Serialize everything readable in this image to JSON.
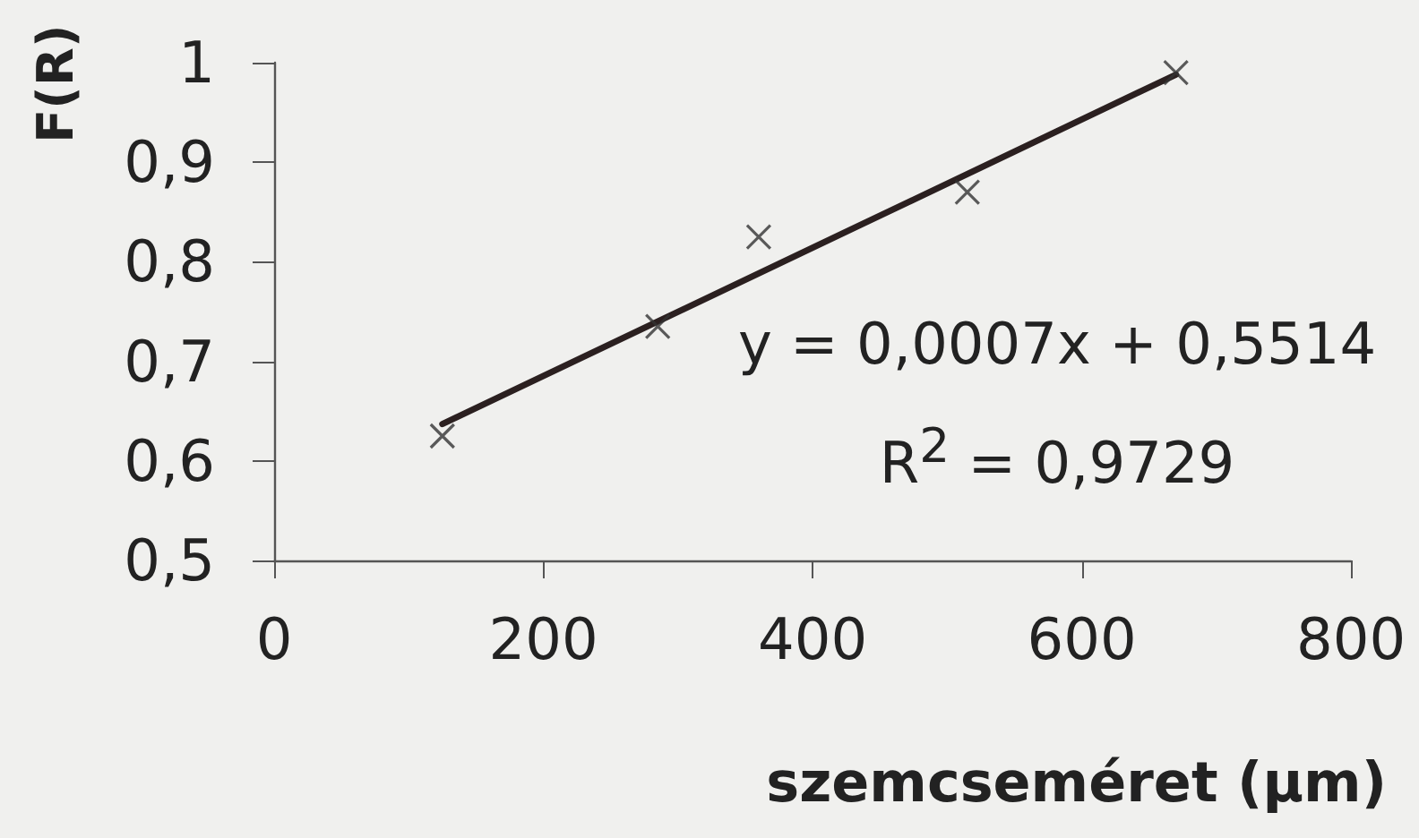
{
  "chart_data": {
    "type": "scatter",
    "xlabel": "szemcseméret (µm)",
    "ylabel": "F(R)",
    "series": [
      {
        "type": "line",
        "color": "#2b2020",
        "x": [
          125,
          670
        ],
        "values": [
          0.637,
          0.988
        ],
        "marker": "none"
      },
      {
        "color": "#333333",
        "x": [
          125,
          285,
          360,
          515,
          670
        ],
        "values": [
          0.625,
          0.735,
          0.825,
          0.87,
          0.99
        ],
        "marker": "cross"
      }
    ],
    "xlim": [
      0,
      800
    ],
    "xticks": [
      0,
      200,
      400,
      600,
      800
    ],
    "ylim": [
      0.5,
      1
    ],
    "yticks": [
      {
        "value": 0.5,
        "label": "0,5"
      },
      {
        "value": 0.6,
        "label": "0,6"
      },
      {
        "value": 0.7,
        "label": "0,7"
      },
      {
        "value": 0.8,
        "label": "0,8"
      },
      {
        "value": 0.9,
        "label": "0,9"
      },
      1
    ],
    "annotations": [
      "y = 0,0007x + 0,5514",
      "R$^{2}$ = 0,9729"
    ]
  }
}
